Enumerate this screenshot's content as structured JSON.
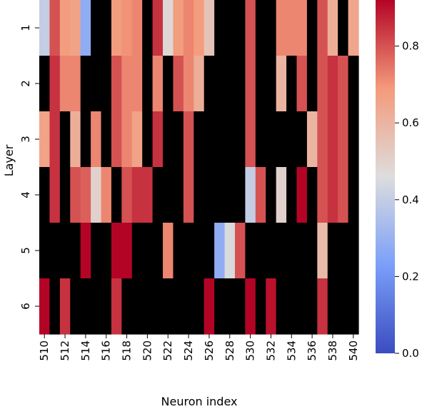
{
  "chart_data": {
    "type": "heatmap",
    "title": "",
    "xlabel": "Neuron index",
    "ylabel": "Layer",
    "x_tick_labels": [
      "510",
      "512",
      "514",
      "516",
      "518",
      "520",
      "522",
      "524",
      "526",
      "528",
      "530",
      "532",
      "534",
      "536",
      "538",
      "540"
    ],
    "y_tick_labels": [
      "1",
      "2",
      "3",
      "4",
      "5",
      "6"
    ],
    "x_values": [
      510,
      511,
      512,
      513,
      514,
      515,
      516,
      517,
      518,
      519,
      520,
      521,
      522,
      523,
      524,
      525,
      526,
      527,
      528,
      529,
      530,
      531,
      532,
      533,
      534,
      535,
      536,
      537,
      538,
      539,
      540
    ],
    "rows": [
      "0",
      "1",
      "2",
      "3",
      "4",
      "5",
      "6"
    ],
    "colormap": "coolwarm",
    "masked_color": "#000000",
    "colorbar": {
      "min": 0.0,
      "max": 0.92,
      "ticks": [
        0.0,
        0.2,
        0.4,
        0.6,
        0.8
      ],
      "tick_labels": [
        "0.0",
        "0.2",
        "0.4",
        "0.6",
        "0.8"
      ]
    },
    "values": [
      [
        0.72,
        0.7,
        0.7,
        null,
        0.62,
        0.6,
        0.6,
        0.6,
        0.62,
        0.65,
        0.8,
        0.72,
        0.68,
        0.55,
        0.62,
        0.72,
        null,
        0.75,
        0.72,
        0.62,
        0.62,
        0.62,
        null,
        0.68,
        0.68,
        0.75,
        0.75,
        0.75,
        0.6,
        0.62,
        0.65
      ],
      [
        0.4,
        0.8,
        0.68,
        0.66,
        0.28,
        null,
        null,
        0.68,
        0.7,
        0.72,
        null,
        0.85,
        0.48,
        0.68,
        0.72,
        0.68,
        0.55,
        null,
        null,
        null,
        0.8,
        null,
        null,
        0.72,
        0.72,
        0.72,
        null,
        0.8,
        0.62,
        null,
        0.65
      ],
      [
        null,
        0.85,
        0.72,
        0.72,
        null,
        null,
        null,
        0.8,
        0.72,
        0.72,
        null,
        0.72,
        null,
        0.8,
        0.72,
        0.62,
        null,
        null,
        null,
        null,
        0.8,
        null,
        null,
        0.6,
        null,
        0.8,
        null,
        0.8,
        0.85,
        0.8,
        null
      ],
      [
        0.66,
        0.85,
        null,
        0.62,
        null,
        0.72,
        null,
        0.8,
        0.72,
        0.66,
        null,
        0.85,
        null,
        null,
        0.8,
        null,
        null,
        null,
        null,
        null,
        0.8,
        null,
        null,
        null,
        null,
        null,
        0.6,
        0.8,
        0.85,
        0.8,
        null
      ],
      [
        null,
        0.85,
        null,
        0.8,
        0.78,
        0.5,
        0.72,
        null,
        0.8,
        0.85,
        0.85,
        null,
        null,
        null,
        0.8,
        null,
        null,
        null,
        null,
        null,
        0.4,
        0.8,
        null,
        0.5,
        null,
        0.92,
        null,
        0.8,
        0.85,
        0.8,
        null
      ],
      [
        null,
        null,
        null,
        null,
        0.92,
        null,
        null,
        0.92,
        0.92,
        null,
        null,
        null,
        0.72,
        null,
        null,
        null,
        null,
        0.28,
        0.45,
        0.8,
        null,
        null,
        null,
        null,
        null,
        null,
        null,
        0.58,
        null,
        null,
        null
      ],
      [
        0.92,
        null,
        0.85,
        null,
        null,
        null,
        null,
        0.85,
        null,
        null,
        null,
        null,
        null,
        null,
        null,
        null,
        0.92,
        null,
        null,
        null,
        0.92,
        null,
        0.9,
        null,
        null,
        null,
        null,
        0.85,
        null,
        null,
        null
      ]
    ]
  }
}
